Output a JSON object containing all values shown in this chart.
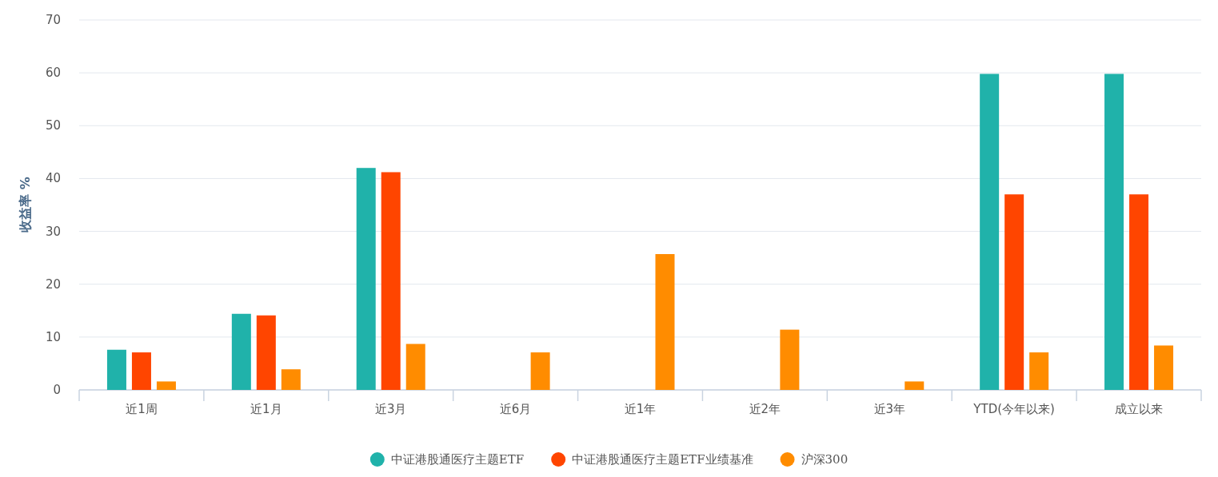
{
  "chart_data": {
    "type": "bar",
    "ylabel": "收益率 %",
    "categories": [
      "近1周",
      "近1月",
      "近3月",
      "近6月",
      "近1年",
      "近2年",
      "近3年",
      "YTD(今年以来)",
      "成立以来"
    ],
    "series": [
      {
        "name": "中证港股通医疗主题ETF",
        "color": "#20b2aa",
        "values": [
          7.6,
          14.4,
          42.0,
          null,
          null,
          null,
          null,
          59.8,
          59.8
        ]
      },
      {
        "name": "中证港股通医疗主题ETF业绩基准",
        "color": "#ff4500",
        "values": [
          7.1,
          14.1,
          41.2,
          null,
          null,
          null,
          null,
          37.0,
          37.0
        ]
      },
      {
        "name": "沪深300",
        "color": "#ff8c00",
        "values": [
          1.6,
          3.9,
          8.7,
          7.1,
          25.7,
          11.4,
          1.6,
          7.1,
          8.4
        ]
      }
    ],
    "ylim": [
      0,
      70
    ],
    "yticks": [
      0,
      10,
      20,
      30,
      40,
      50,
      60,
      70
    ],
    "grid": "y",
    "legend": "bottom"
  }
}
